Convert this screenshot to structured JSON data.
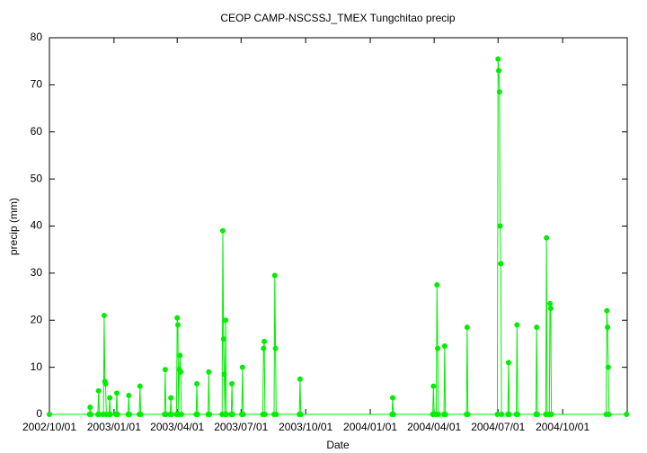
{
  "chart_data": {
    "type": "line",
    "title": "CEOP CAMP-NSCSSJ_TMEX Tungchitao  precip",
    "xlabel": "Date",
    "ylabel": "precip (mm)",
    "color": "#00ee00",
    "xlim": [
      "2002/10/01",
      "2005/01/01"
    ],
    "xticks": [
      "2002/10/01",
      "2003/01/01",
      "2003/04/01",
      "2003/07/01",
      "2003/10/01",
      "2004/01/01",
      "2004/04/01",
      "2004/07/01",
      "2004/10/01"
    ],
    "ylim": [
      0,
      80
    ],
    "yticks": [
      0,
      10,
      20,
      30,
      40,
      50,
      60,
      70,
      80
    ],
    "x": [
      "2002/10/01",
      "2002/11/27",
      "2002/11/28",
      "2002/11/29",
      "2002/12/09",
      "2002/12/10",
      "2002/12/11",
      "2002/12/17",
      "2002/12/18",
      "2002/12/19",
      "2002/12/20",
      "2002/12/21",
      "2002/12/25",
      "2002/12/26",
      "2002/12/27",
      "2003/01/04",
      "2003/01/05",
      "2003/01/06",
      "2003/01/21",
      "2003/01/22",
      "2003/01/23",
      "2003/02/06",
      "2003/02/07",
      "2003/02/08",
      "2003/03/14",
      "2003/03/15",
      "2003/03/16",
      "2003/03/22",
      "2003/03/23",
      "2003/03/24",
      "2003/03/31",
      "2003/04/01",
      "2003/04/02",
      "2003/04/03",
      "2003/04/04",
      "2003/04/05",
      "2003/04/06",
      "2003/04/07",
      "2003/04/28",
      "2003/04/29",
      "2003/04/30",
      "2003/05/15",
      "2003/05/16",
      "2003/05/17",
      "2003/06/04",
      "2003/06/05",
      "2003/06/06",
      "2003/06/07",
      "2003/06/08",
      "2003/06/09",
      "2003/06/10",
      "2003/06/17",
      "2003/06/18",
      "2003/06/19",
      "2003/07/02",
      "2003/07/03",
      "2003/07/04",
      "2003/08/01",
      "2003/08/02",
      "2003/08/03",
      "2003/08/04",
      "2003/08/17",
      "2003/08/18",
      "2003/08/19",
      "2003/08/20",
      "2003/09/22",
      "2003/09/23",
      "2003/09/24",
      "2004/02/01",
      "2004/02/02",
      "2004/02/03",
      "2004/03/30",
      "2004/03/31",
      "2004/04/01",
      "2004/04/04",
      "2004/04/05",
      "2004/04/06",
      "2004/04/07",
      "2004/04/15",
      "2004/04/16",
      "2004/04/17",
      "2004/05/17",
      "2004/05/18",
      "2004/05/19",
      "2004/06/30",
      "2004/07/01",
      "2004/07/02",
      "2004/07/03",
      "2004/07/04",
      "2004/07/05",
      "2004/07/06",
      "2004/07/15",
      "2004/07/16",
      "2004/07/17",
      "2004/07/27",
      "2004/07/28",
      "2004/07/29",
      "2004/08/24",
      "2004/08/25",
      "2004/08/26",
      "2004/09/07",
      "2004/09/08",
      "2004/09/09",
      "2004/09/12",
      "2004/09/13",
      "2004/09/14",
      "2004/09/15",
      "2004/12/02",
      "2004/12/03",
      "2004/12/04",
      "2004/12/05",
      "2004/12/06",
      "2004/12/31"
    ],
    "values": [
      0,
      0,
      1.5,
      0,
      0,
      5,
      0,
      0,
      21,
      7,
      6.5,
      0,
      0,
      3.5,
      0,
      0,
      4.5,
      0,
      0,
      4,
      0,
      0,
      6,
      0,
      0,
      9.5,
      0,
      0,
      3.5,
      0,
      0,
      20.5,
      19,
      0,
      9.5,
      12.5,
      9,
      0,
      0,
      6.5,
      0,
      0,
      9,
      0,
      0,
      39,
      16,
      8.5,
      0,
      20,
      0,
      0,
      6.5,
      0,
      0,
      10,
      0,
      0,
      14,
      15.5,
      0,
      0,
      29.5,
      14,
      0,
      0,
      7.5,
      0,
      0,
      3.5,
      0,
      0,
      6,
      0,
      0,
      27.5,
      14,
      0,
      0,
      14.5,
      0,
      0,
      18.5,
      0,
      0,
      75.5,
      73,
      68.5,
      40,
      32,
      0,
      0,
      11,
      0,
      0,
      19,
      0,
      0,
      18.5,
      0,
      0,
      37.5,
      0,
      0,
      23.5,
      22.5,
      0,
      0,
      22,
      18.5,
      10,
      0,
      0
    ]
  }
}
